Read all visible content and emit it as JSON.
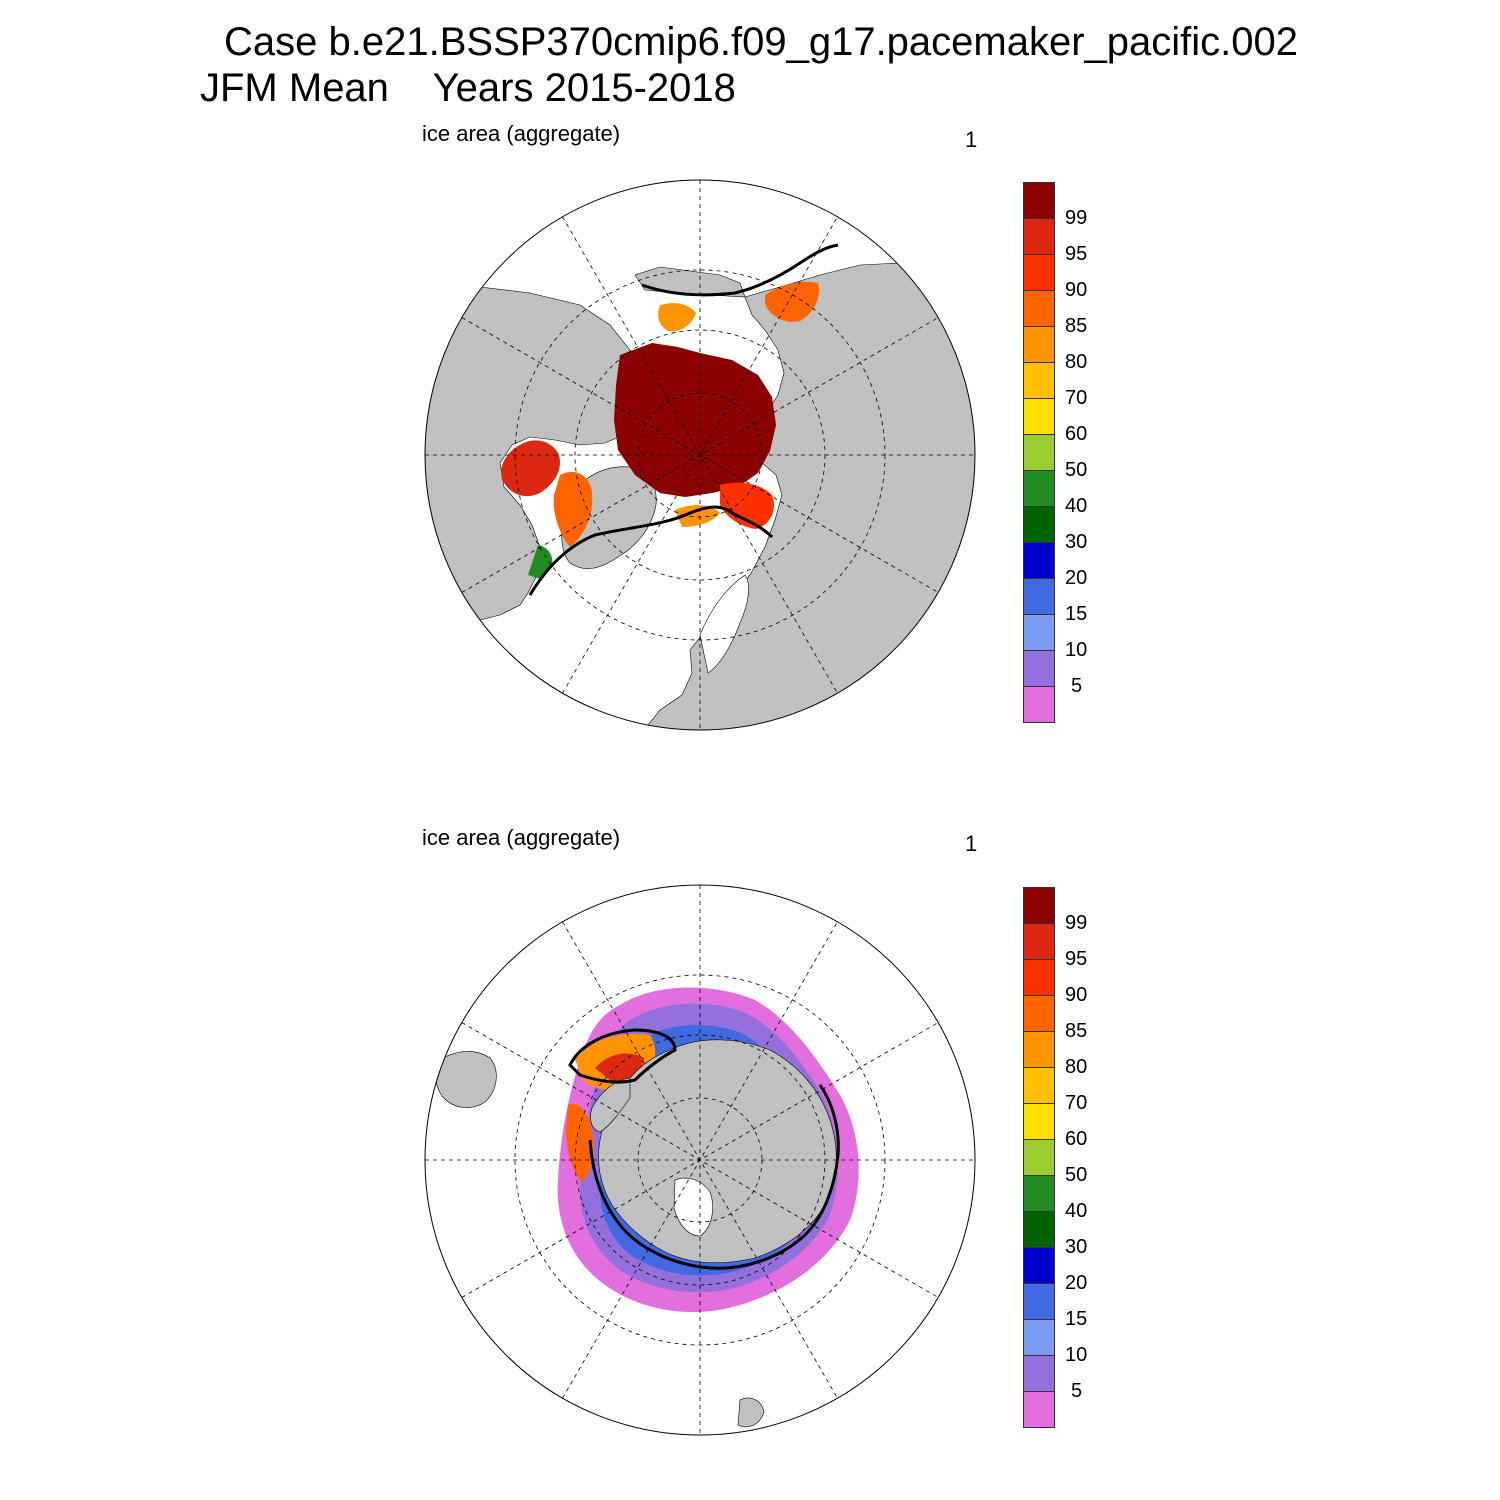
{
  "title": {
    "line1": "Case b.e21.BSSP370cmip6.f09_g17.pacemaker_pacific.002",
    "line2": "JFM Mean    Years 2015-2018"
  },
  "panels": [
    {
      "hemisphere": "north",
      "label": "ice area  (aggregate)",
      "number": "1"
    },
    {
      "hemisphere": "south",
      "label": "ice area  (aggregate)",
      "number": "1"
    }
  ],
  "colorbar": {
    "labels": [
      "5",
      "10",
      "15",
      "20",
      "30",
      "40",
      "50",
      "60",
      "70",
      "80",
      "85",
      "90",
      "95",
      "99"
    ],
    "colors": [
      "#e36fde",
      "#9370db",
      "#7b9cf1",
      "#4169e1",
      "#0000cd",
      "#006400",
      "#228b22",
      "#9acd32",
      "#ffe000",
      "#ffc000",
      "#ff9400",
      "#ff6400",
      "#ff3000",
      "#dc2810",
      "#8b0000"
    ]
  },
  "map_colors": {
    "land": "#c0c0c0",
    "ocean": "#ffffff",
    "observed_edge": "#000000"
  }
}
